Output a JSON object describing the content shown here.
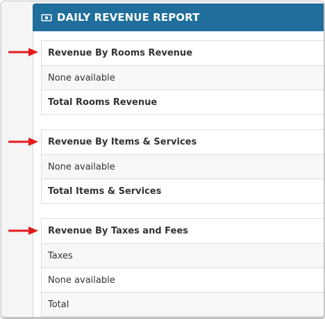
{
  "header": {
    "title": "DAILY REVENUE REPORT",
    "icon": "money-icon",
    "color": "#1f6e9b"
  },
  "sections": [
    {
      "heading": "Revenue By Rooms Revenue",
      "rows": [
        "None available",
        "Total Rooms Revenue"
      ]
    },
    {
      "heading": "Revenue By Items & Services",
      "rows": [
        "None available",
        "Total Items & Services"
      ]
    },
    {
      "heading": "Revenue By Taxes and Fees",
      "rows": [
        "Taxes",
        "None available",
        "Total"
      ]
    }
  ],
  "annotation_color": "#e21b1b"
}
